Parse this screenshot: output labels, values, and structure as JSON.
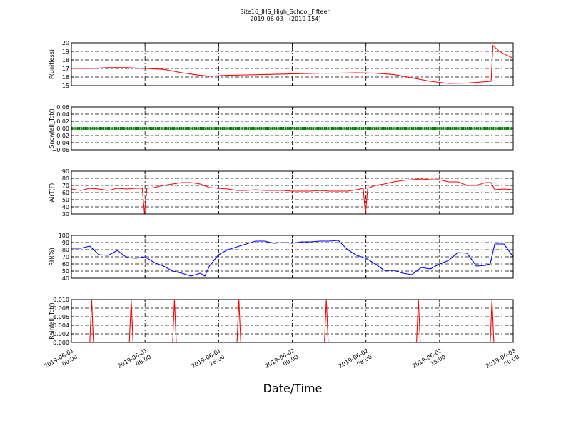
{
  "chart_data": {
    "type": "line",
    "title": "Site16_JHS_High_School_Fifteen",
    "subtitle": "2019-06-03 - (2019-154)",
    "xlabel": "Date/Time",
    "x_ticks": [
      {
        "lines": [
          "2019-06-01",
          "00:00"
        ]
      },
      {
        "lines": [
          "2019-06-01",
          "08:00"
        ]
      },
      {
        "lines": [
          "2019-06-01",
          "16:00"
        ]
      },
      {
        "lines": [
          "2019-06-02",
          "00:00"
        ]
      },
      {
        "lines": [
          "2019-06-02",
          "08:00"
        ]
      },
      {
        "lines": [
          "2019-06-02",
          "16:00"
        ]
      },
      {
        "lines": [
          "2019-06-03",
          "00:00"
        ]
      }
    ],
    "xlim_hours": [
      0,
      48
    ],
    "grid": true,
    "panels": [
      {
        "ylabel": "P(unitless)",
        "ylim": [
          15,
          20
        ],
        "yticks": [
          "15",
          "16",
          "17",
          "18",
          "19",
          "20"
        ],
        "color": "#ff0000",
        "series": {
          "hours": [
            0,
            2,
            4,
            6,
            8,
            10,
            12,
            14,
            15,
            17,
            19,
            21,
            23,
            25,
            27,
            29,
            31,
            33,
            35,
            37,
            39,
            41,
            43,
            45.6,
            45.8,
            46.5,
            47.2,
            48
          ],
          "values": [
            17.0,
            17.0,
            17.1,
            17.1,
            17.0,
            16.9,
            16.5,
            16.2,
            16.1,
            16.2,
            16.25,
            16.3,
            16.35,
            16.4,
            16.45,
            16.45,
            16.5,
            16.45,
            16.3,
            15.9,
            15.5,
            15.25,
            15.3,
            15.5,
            19.7,
            19.0,
            18.6,
            18.2
          ]
        }
      },
      {
        "ylabel": "Snowfall_Tot()",
        "ylim": [
          -0.06,
          0.06
        ],
        "yticks": [
          "−0.06",
          "−0.04",
          "−0.02",
          "0.00",
          "0.02",
          "0.04",
          "0.06"
        ],
        "color": "#008000",
        "series": {
          "hours": [
            0,
            48
          ],
          "values": [
            0.0,
            0.0
          ]
        }
      },
      {
        "ylabel": "AirT(F)",
        "ylim": [
          30,
          90
        ],
        "yticks": [
          "30",
          "40",
          "50",
          "60",
          "70",
          "80",
          "90"
        ],
        "color": "#ff0000",
        "series": {
          "hours": [
            0,
            1,
            2,
            3,
            4,
            5,
            6,
            7,
            7.7,
            7.95,
            8.2,
            9,
            10,
            11,
            12,
            13,
            14,
            15,
            16,
            17,
            18,
            19,
            20,
            21,
            22,
            23,
            24,
            25,
            26,
            27,
            28,
            29,
            30,
            31,
            31.7,
            31.95,
            32.2,
            33,
            34,
            35,
            36,
            37,
            38,
            39,
            40,
            41,
            42,
            43,
            44,
            45,
            45.6,
            46,
            47,
            48
          ],
          "values": [
            65,
            63,
            66,
            65,
            63,
            66,
            65,
            66,
            66,
            30,
            66,
            67,
            70,
            72,
            74,
            74,
            72,
            67,
            66,
            65,
            63,
            63,
            64,
            63,
            63,
            63,
            62,
            62,
            62,
            63,
            62,
            62,
            62,
            64,
            66,
            30,
            66,
            70,
            72,
            75,
            77,
            78,
            79,
            78,
            78,
            75,
            75,
            70,
            70,
            74,
            74,
            64,
            65,
            64
          ]
        }
      },
      {
        "ylabel": "RH(%)",
        "ylim": [
          40,
          100
        ],
        "yticks": [
          "40",
          "50",
          "60",
          "70",
          "80",
          "90",
          "100"
        ],
        "color": "#0000ff",
        "series": {
          "hours": [
            0,
            1,
            2,
            3,
            4,
            5,
            6,
            7,
            8,
            9,
            10,
            11,
            12,
            13,
            14,
            14.5,
            15,
            16,
            17,
            18,
            19,
            20,
            21,
            22,
            23,
            24,
            25,
            26,
            27,
            28,
            29,
            30,
            31,
            32,
            33,
            34,
            35,
            36,
            37,
            38,
            39,
            40,
            41,
            42,
            43,
            44,
            45,
            45.5,
            46,
            47,
            48
          ],
          "values": [
            82,
            82,
            85,
            73,
            72,
            79,
            69,
            68,
            70,
            62,
            57,
            50,
            47,
            43,
            47,
            43,
            57,
            73,
            80,
            84,
            88,
            92,
            92,
            89,
            90,
            89,
            91,
            91,
            92,
            92,
            93,
            80,
            72,
            68,
            60,
            51,
            51,
            47,
            45,
            55,
            53,
            60,
            65,
            76,
            75,
            57,
            58,
            60,
            88,
            88,
            70
          ]
        }
      },
      {
        "ylabel": "Rainfall_Tot()",
        "ylim": [
          0,
          0.01
        ],
        "yticks": [
          "0.000",
          "0.002",
          "0.004",
          "0.006",
          "0.008",
          "0.010"
        ],
        "color": "#ff0000",
        "series": {
          "hours": [
            0,
            2.0,
            2.2,
            2.4,
            6.3,
            6.5,
            6.7,
            11.0,
            11.2,
            11.4,
            18.0,
            18.2,
            18.4,
            27.5,
            27.7,
            27.9,
            37.5,
            37.7,
            37.9,
            45.5,
            45.7,
            45.9,
            48
          ],
          "values": [
            0,
            0,
            0.01,
            0,
            0,
            0.01,
            0,
            0,
            0.01,
            0,
            0,
            0.01,
            0,
            0,
            0.01,
            0,
            0,
            0.01,
            0,
            0,
            0.01,
            0,
            0
          ]
        }
      }
    ]
  }
}
